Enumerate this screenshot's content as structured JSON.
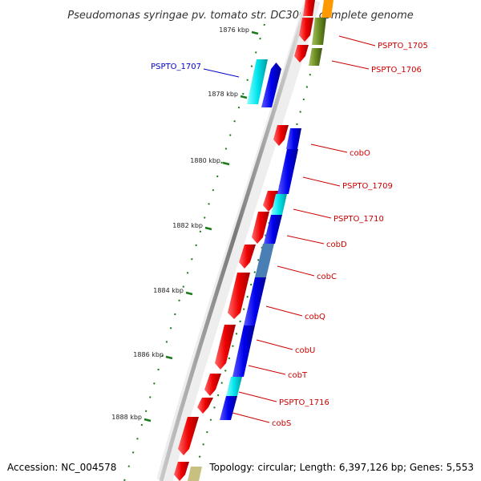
{
  "title": "Pseudomonas syringae pv. tomato str. DC3000, complete genome",
  "footer": {
    "accession": "Accession: NC_004578",
    "topology": "Topology: circular; Length: 6,397,126 bp; Genes: 5,553"
  },
  "ticks": [
    {
      "label": "1876 kbp",
      "kbp": 1876
    },
    {
      "label": "1878 kbp",
      "kbp": 1878
    },
    {
      "label": "1880 kbp",
      "kbp": 1880
    },
    {
      "label": "1882 kbp",
      "kbp": 1882
    },
    {
      "label": "1884 kbp",
      "kbp": 1884
    },
    {
      "label": "1886 kbp",
      "kbp": 1886
    },
    {
      "label": "1888 kbp",
      "kbp": 1888
    }
  ],
  "gene_labels": [
    {
      "name": "PSPTO_1705",
      "color": "#cc0000"
    },
    {
      "name": "PSPTO_1706",
      "color": "#cc0000"
    },
    {
      "name": "PSPTO_1707",
      "color": "#0000cc"
    },
    {
      "name": "cobO",
      "color": "#cc0000"
    },
    {
      "name": "PSPTO_1709",
      "color": "#cc0000"
    },
    {
      "name": "PSPTO_1710",
      "color": "#cc0000"
    },
    {
      "name": "cobD",
      "color": "#cc0000"
    },
    {
      "name": "cobC",
      "color": "#cc0000"
    },
    {
      "name": "cobQ",
      "color": "#cc0000"
    },
    {
      "name": "cobU",
      "color": "#cc0000"
    },
    {
      "name": "cobT",
      "color": "#cc0000"
    },
    {
      "name": "PSPTO_1716",
      "color": "#cc0000"
    },
    {
      "name": "cobS",
      "color": "#cc0000"
    }
  ],
  "colors": {
    "forward_cds": "#ee0000",
    "reverse_cds": "#0000ee",
    "cyan_feature": "#00e5ee",
    "steel_feature": "#4a7fb5",
    "olive_feature": "#6b8e23",
    "orange_feature": "#ff9900",
    "khaki_feature": "#c8c080",
    "backbone": "#8a8a8a",
    "tick": "#1a7a1a"
  }
}
